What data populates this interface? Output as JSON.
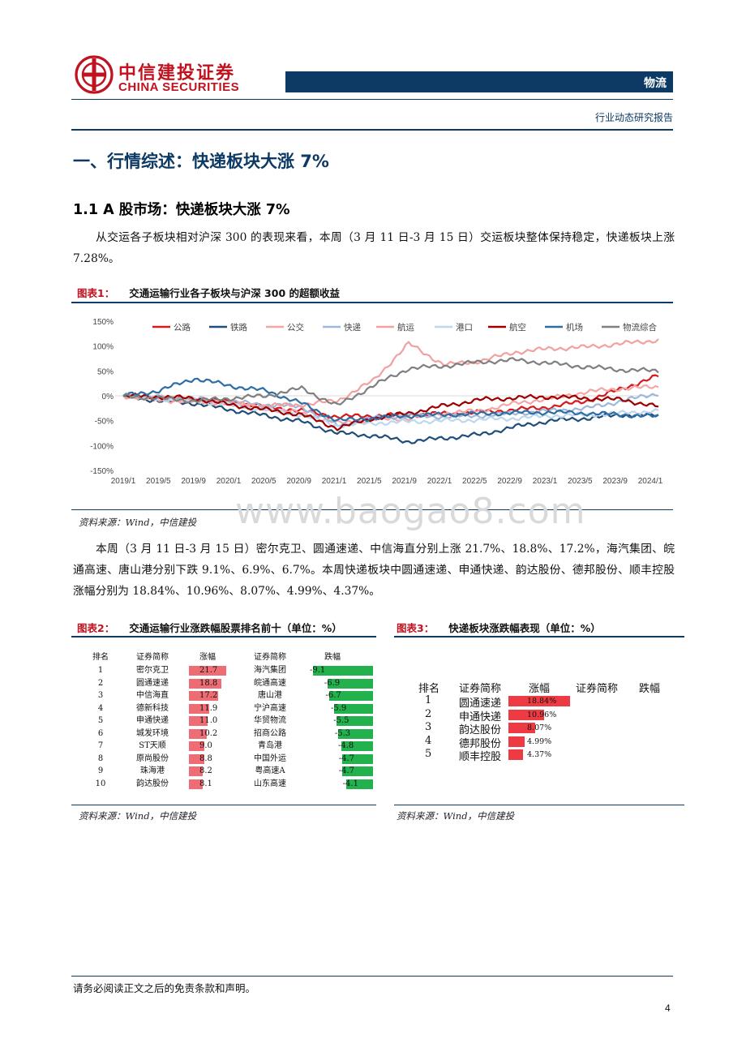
{
  "header": {
    "logo_cn": "中信建投证券",
    "logo_en": "CHINA SECURITIES",
    "section": "物流",
    "report_type": "行业动态研究报告"
  },
  "h1": "一、行情综述：快递板块大涨 7%",
  "h2": "1.1 A 股市场：快递板块大涨 7%",
  "para1": "从交运各子板块相对沪深 300 的表现来看，本周（3 月 11 日-3 月 15 日）交运板块整体保持稳定，快递板块上涨 7.28%。",
  "fig1": {
    "label": "图表1：",
    "title": "交通运输行业各子板块与沪深 300 的超额收益",
    "source": "资料来源：Wind，中信建投"
  },
  "watermark": "www.baogao8.com",
  "para2": "本周（3 月 11 日-3 月 15 日）密尔克卫、圆通速递、中信海直分别上涨 21.7%、18.8%、17.2%，海汽集团、皖通高速、唐山港分别下跌 9.1%、6.9%、6.7%。本周快递板块中圆通速递、申通快递、韵达股份、德邦股份、顺丰控股涨幅分别为 18.84%、10.96%、8.07%、4.99%、4.37%。",
  "chart_data": [
    {
      "type": "line",
      "title": "",
      "x_ticks": [
        "2019/1",
        "2019/5",
        "2019/9",
        "2020/1",
        "2020/5",
        "2020/9",
        "2021/1",
        "2021/5",
        "2021/9",
        "2022/1",
        "2022/5",
        "2022/9",
        "2023/1",
        "2023/5",
        "2023/9",
        "2024/1"
      ],
      "y_ticks": [
        "150%",
        "100%",
        "50%",
        "0%",
        "-50%",
        "-100%",
        "-150%"
      ],
      "ylim": [
        -150,
        150
      ],
      "legend_position": "top",
      "series": [
        {
          "name": "公路",
          "color": "#d7191c",
          "values": [
            0,
            -5,
            -8,
            -12,
            -22,
            -30,
            -42,
            -40,
            -38,
            -36,
            -33,
            -28,
            -22,
            -10,
            15,
            40
          ]
        },
        {
          "name": "铁路",
          "color": "#1f4e79",
          "values": [
            0,
            -10,
            -15,
            -28,
            -40,
            -52,
            -75,
            -80,
            -92,
            -85,
            -78,
            -62,
            -50,
            -45,
            -38,
            -40
          ]
        },
        {
          "name": "公交",
          "color": "#f4a6a6",
          "values": [
            0,
            -4,
            -8,
            -15,
            -25,
            -35,
            -55,
            -48,
            -45,
            -35,
            -30,
            -15,
            -5,
            8,
            15,
            18
          ]
        },
        {
          "name": "快递",
          "color": "#9db8d9",
          "values": [
            0,
            -3,
            -6,
            -12,
            -18,
            -22,
            -60,
            -45,
            -40,
            -42,
            -40,
            -35,
            -30,
            -25,
            -10,
            5
          ]
        },
        {
          "name": "航运",
          "color": "#f2a0a0",
          "values": [
            0,
            -8,
            -12,
            -15,
            -20,
            -18,
            -10,
            30,
            105,
            62,
            70,
            88,
            95,
            98,
            105,
            112
          ]
        },
        {
          "name": "港口",
          "color": "#bdd7ee",
          "values": [
            0,
            -6,
            -10,
            -18,
            -28,
            -38,
            -60,
            -55,
            -52,
            -50,
            -48,
            -45,
            -40,
            -38,
            -35,
            -30
          ]
        },
        {
          "name": "航空",
          "color": "#9e0000",
          "values": [
            0,
            -2,
            -5,
            -18,
            -28,
            -38,
            -65,
            -45,
            -35,
            -20,
            -8,
            -4,
            -2,
            -5,
            -8,
            -22
          ]
        },
        {
          "name": "机场",
          "color": "#2e6da4",
          "values": [
            0,
            10,
            35,
            20,
            10,
            -15,
            -50,
            -45,
            -40,
            -38,
            -36,
            -34,
            -33,
            -35,
            -38,
            -42
          ]
        },
        {
          "name": "物流综合",
          "color": "#7f7f7f",
          "values": [
            0,
            -5,
            -10,
            -5,
            0,
            15,
            -20,
            20,
            55,
            60,
            68,
            72,
            65,
            58,
            52,
            50
          ]
        }
      ]
    },
    {
      "type": "table",
      "title": "交通运输行业涨跌幅股票排名前十（单位：%）",
      "columns": [
        "排名",
        "证券简称",
        "涨幅",
        "证券简称",
        "跌幅"
      ],
      "rows": [
        {
          "rank": "1",
          "up_name": "密尔克卫",
          "up": 21.7,
          "up_label": "21.7",
          "down_name": "海汽集团",
          "down": -9.1,
          "down_label": "-9.1"
        },
        {
          "rank": "2",
          "up_name": "圆通速递",
          "up": 18.8,
          "up_label": "18.8",
          "down_name": "皖通高速",
          "down": -6.9,
          "down_label": "-6.9"
        },
        {
          "rank": "3",
          "up_name": "中信海直",
          "up": 17.2,
          "up_label": "17.2",
          "down_name": "唐山港",
          "down": -6.7,
          "down_label": "-6.7"
        },
        {
          "rank": "4",
          "up_name": "德新科技",
          "up": 11.9,
          "up_label": "11.9",
          "down_name": "宁沪高速",
          "down": -5.9,
          "down_label": "-5.9"
        },
        {
          "rank": "5",
          "up_name": "申通快递",
          "up": 11.0,
          "up_label": "11.0",
          "down_name": "华贸物流",
          "down": -5.5,
          "down_label": "-5.5"
        },
        {
          "rank": "6",
          "up_name": "城发环境",
          "up": 10.2,
          "up_label": "10.2",
          "down_name": "招商公路",
          "down": -5.3,
          "down_label": "-5.3"
        },
        {
          "rank": "7",
          "up_name": "ST天顺",
          "up": 9.0,
          "up_label": "9.0",
          "down_name": "青岛港",
          "down": -4.8,
          "down_label": "-4.8"
        },
        {
          "rank": "8",
          "up_name": "原尚股份",
          "up": 8.8,
          "up_label": "8.8",
          "down_name": "中国外运",
          "down": -4.7,
          "down_label": "-4.7"
        },
        {
          "rank": "9",
          "up_name": "珠海港",
          "up": 8.2,
          "up_label": "8.2",
          "down_name": "粤高速A",
          "down": -4.7,
          "down_label": "-4.7"
        },
        {
          "rank": "10",
          "up_name": "韵达股份",
          "up": 8.1,
          "up_label": "8.1",
          "down_name": "山东高速",
          "down": -4.1,
          "down_label": "-4.1"
        }
      ]
    },
    {
      "type": "table",
      "title": "快递板块涨跌幅表现（单位：%）",
      "columns": [
        "排名",
        "证券简称",
        "涨幅",
        "证券简称",
        "跌幅"
      ],
      "rows": [
        {
          "rank": "1",
          "name": "圆通速递",
          "up": 18.84,
          "up_label": "18.84%"
        },
        {
          "rank": "2",
          "name": "申通快递",
          "up": 10.96,
          "up_label": "10.96%"
        },
        {
          "rank": "3",
          "name": "韵达股份",
          "up": 8.07,
          "up_label": "8.07%"
        },
        {
          "rank": "4",
          "name": "德邦股份",
          "up": 4.99,
          "up_label": "4.99%"
        },
        {
          "rank": "5",
          "name": "顺丰控股",
          "up": 4.37,
          "up_label": "4.37%"
        }
      ]
    }
  ],
  "fig2": {
    "label": "图表2：",
    "title": "交通运输行业涨跌幅股票排名前十（单位：%）",
    "source": "资料来源：Wind，中信建投"
  },
  "fig3": {
    "label": "图表3：",
    "title": "快递板块涨跌幅表现（单位：%）",
    "source": "资料来源：Wind，中信建投"
  },
  "footer": {
    "note": "请务必阅读正文之后的免责条款和声明。",
    "page_number": "4"
  }
}
